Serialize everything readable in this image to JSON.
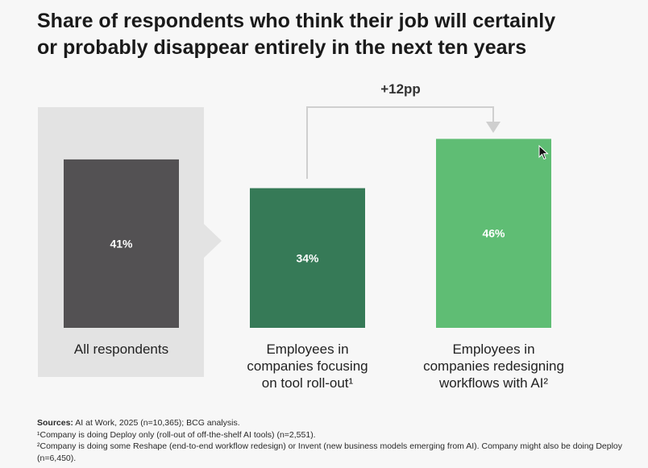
{
  "chart_data": {
    "type": "bar",
    "title_lines": [
      "Share of respondents who think their job will certainly",
      "or probably disappear entirely in the next ten years"
    ],
    "categories": [
      [
        "All respondents"
      ],
      [
        "Employees in",
        "companies focusing",
        "on tool roll-out¹"
      ],
      [
        "Employees in",
        "companies redesigning",
        "workflows with AI²"
      ]
    ],
    "values": [
      41,
      34,
      46
    ],
    "value_labels": [
      "41%",
      "34%",
      "46%"
    ],
    "unit": "%",
    "ylim": [
      0,
      50
    ],
    "bar_colors": [
      "#535153",
      "#367a57",
      "#5fbd74"
    ],
    "annotation": {
      "text": "+12pp",
      "from_category": 1,
      "to_category": 2
    },
    "highlight_panel_color": "#e3e3e3",
    "grid": false
  },
  "footnotes": {
    "sources_label": "Sources:",
    "sources_text": " AI at Work, 2025 (n=10,365); BCG analysis.",
    "note1": "¹Company is doing Deploy only (roll-out of off-the-shelf AI tools) (n=2,551).",
    "note2": "²Company is doing some Reshape (end-to-end workflow redesign) or Invent (new business models emerging from AI). Company might also be doing Deploy (n=6,450)."
  }
}
